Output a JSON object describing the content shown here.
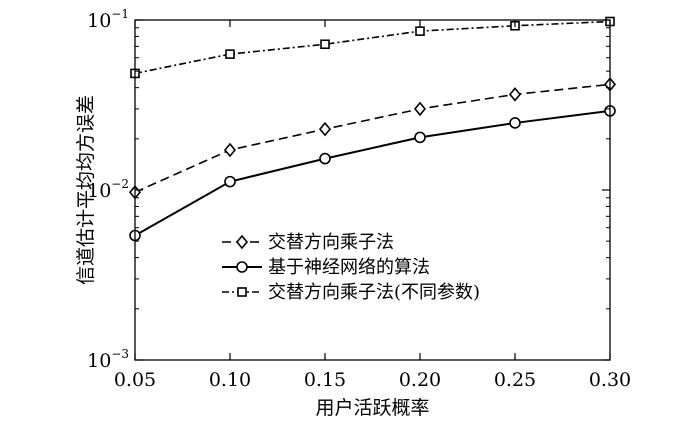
{
  "chart_data": {
    "type": "line",
    "title": "",
    "xlabel": "用户活跃概率",
    "ylabel": "信道估计平均均方误差",
    "x": [
      0.05,
      0.1,
      0.15,
      0.2,
      0.25,
      0.3
    ],
    "x_tick_labels": [
      "0.05",
      "0.10",
      "0.15",
      "0.20",
      "0.25",
      "0.30"
    ],
    "xlim": [
      0.05,
      0.3
    ],
    "ylim": [
      0.001,
      0.1
    ],
    "y_scale": "log",
    "y_ticks": [
      {
        "value": 0.1,
        "base": "10",
        "exp": "−1"
      },
      {
        "value": 0.01,
        "base": "10",
        "exp": "−2"
      },
      {
        "value": 0.001,
        "base": "10",
        "exp": "−3"
      }
    ],
    "grid": false,
    "legend_position": "lower-center",
    "series": [
      {
        "name": "交替方向乘子法",
        "values": [
          0.0097,
          0.0172,
          0.0228,
          0.03,
          0.0365,
          0.0418
        ],
        "line_style": "dashed",
        "marker": "diamond",
        "color": "#000000"
      },
      {
        "name": "基于神经网络的算法",
        "values": [
          0.0054,
          0.0112,
          0.0153,
          0.0204,
          0.0248,
          0.0292
        ],
        "line_style": "solid",
        "marker": "circle",
        "color": "#000000"
      },
      {
        "name": "交替方向乘子法(不同参数)",
        "values": [
          0.0485,
          0.063,
          0.072,
          0.086,
          0.0925,
          0.098
        ],
        "line_style": "dashdot",
        "marker": "square",
        "color": "#000000"
      }
    ]
  }
}
